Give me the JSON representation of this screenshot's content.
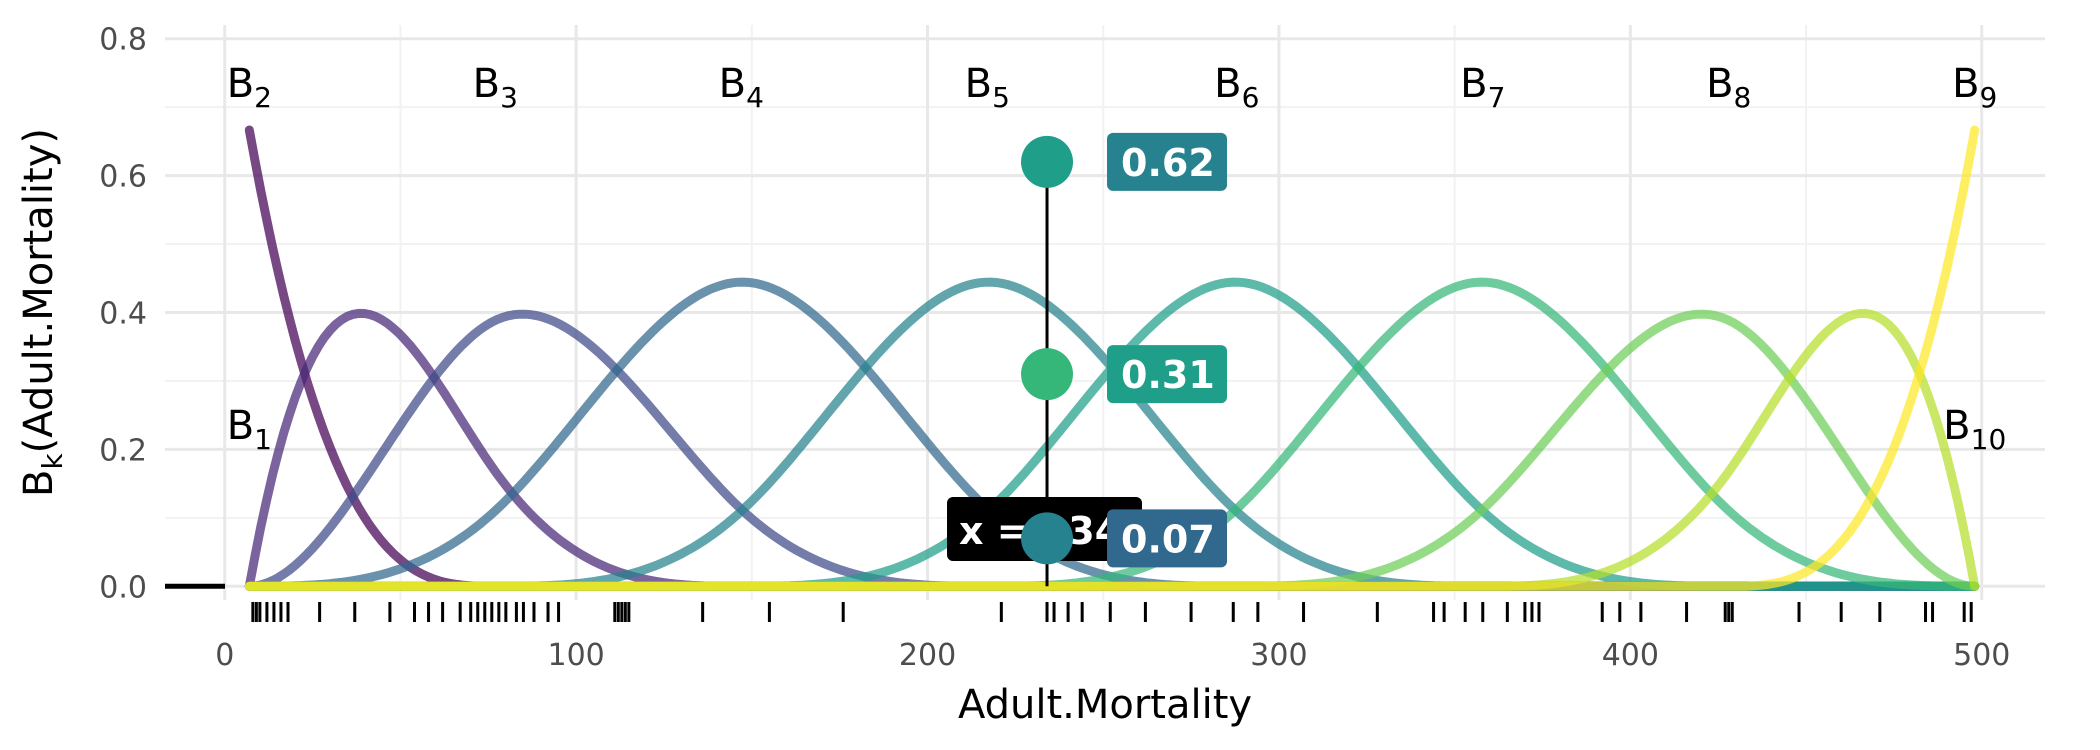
{
  "chart_data": {
    "type": "line",
    "xlabel": "Adult.Mortality",
    "ylabel_main": "B",
    "ylabel_sub": "k",
    "ylabel_rest": "(Adult.Mortality)",
    "xlim": [
      -17,
      518
    ],
    "ylim": [
      -0.02,
      0.82
    ],
    "x_ticks": [
      0,
      100,
      200,
      300,
      400,
      500
    ],
    "x_tick_labels": [
      "0",
      "100",
      "200",
      "300",
      "400",
      "500"
    ],
    "y_ticks": [
      0.0,
      0.2,
      0.4,
      0.6,
      0.8
    ],
    "y_tick_labels": [
      "0.0",
      "0.2",
      "0.4",
      "0.6",
      "0.8"
    ],
    "grid": true,
    "basis_range": [
      7,
      498
    ],
    "basis_count": 10,
    "basis_labels": [
      {
        "main": "B",
        "sub": "1",
        "x": 7,
        "y": 0.215
      },
      {
        "main": "B",
        "sub": "2",
        "x": 7,
        "y": 0.715
      },
      {
        "main": "B",
        "sub": "3",
        "x": 77,
        "y": 0.715
      },
      {
        "main": "B",
        "sub": "4",
        "x": 147,
        "y": 0.715
      },
      {
        "main": "B",
        "sub": "5",
        "x": 217,
        "y": 0.715
      },
      {
        "main": "B",
        "sub": "6",
        "x": 288,
        "y": 0.715
      },
      {
        "main": "B",
        "sub": "7",
        "x": 358,
        "y": 0.715
      },
      {
        "main": "B",
        "sub": "8",
        "x": 428,
        "y": 0.715
      },
      {
        "main": "B",
        "sub": "9",
        "x": 498,
        "y": 0.715
      },
      {
        "main": "B",
        "sub": "10",
        "x": 498,
        "y": 0.215
      }
    ],
    "series": [
      {
        "color": "#440154",
        "values": "basis-1"
      },
      {
        "color": "#482878",
        "values": "basis-2"
      },
      {
        "color": "#3e4989",
        "values": "basis-3"
      },
      {
        "color": "#31688e",
        "values": "basis-4"
      },
      {
        "color": "#26828e",
        "values": "basis-5"
      },
      {
        "color": "#1f9e89",
        "values": "basis-6"
      },
      {
        "color": "#35b779",
        "values": "basis-7"
      },
      {
        "color": "#6ece58",
        "values": "basis-8"
      },
      {
        "color": "#b5de2b",
        "values": "basis-9"
      },
      {
        "color": "#fde725",
        "values": "basis-10"
      }
    ],
    "highlight": {
      "x": 234,
      "readout": "x = 234",
      "points": [
        {
          "y": 0.62,
          "label": "0.62",
          "point_color": "#1f9e89",
          "label_color": "#26828e"
        },
        {
          "y": 0.31,
          "label": "0.31",
          "point_color": "#35b779",
          "label_color": "#1f9e89"
        },
        {
          "y": 0.07,
          "label": "0.07",
          "point_color": "#26828e",
          "label_color": "#31688e"
        }
      ]
    },
    "rug": [
      8,
      9,
      10,
      12,
      14,
      16,
      18,
      27,
      37,
      47,
      54,
      58,
      62,
      67,
      70,
      72,
      74,
      76,
      78,
      80,
      83,
      85,
      88,
      92,
      95,
      111,
      112,
      113,
      114,
      115,
      136,
      155,
      176,
      221,
      234,
      236,
      240,
      244,
      252,
      262,
      275,
      287,
      294,
      307,
      328,
      344,
      347,
      353,
      358,
      365,
      370,
      372,
      374,
      392,
      397,
      403,
      416,
      427,
      428,
      429,
      448,
      460,
      471,
      484,
      486,
      495,
      497
    ]
  }
}
